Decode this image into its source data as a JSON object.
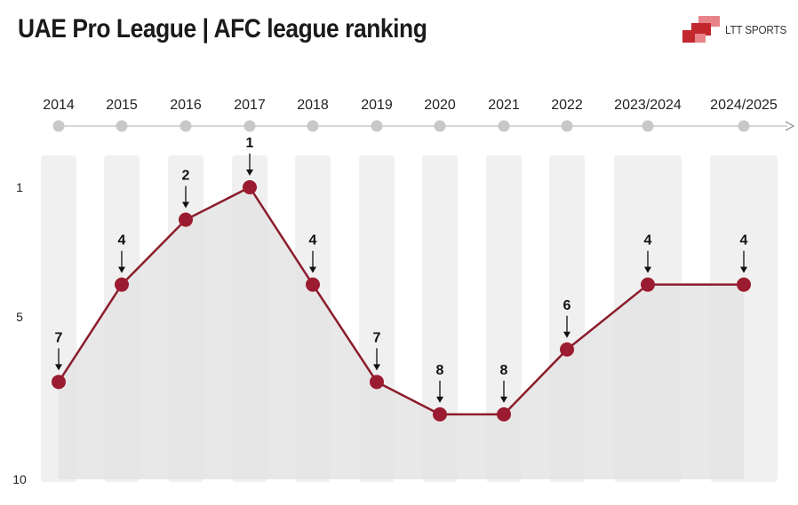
{
  "title": "UAE Pro League | AFC league ranking",
  "logo": {
    "text": "LTT SPORTS"
  },
  "colors": {
    "line": "#8b1c2c",
    "marker": "#9b1b30",
    "timeline": "#c8c8c8",
    "column": "#f0f0f0",
    "area": "#e4e4e4",
    "logo_primary": "#c1272d",
    "logo_light": "#e8838a"
  },
  "chart_data": {
    "type": "line",
    "x": [
      "2014",
      "2015",
      "2016",
      "2017",
      "2018",
      "2019",
      "2020",
      "2021",
      "2022",
      "2023/2024",
      "2024/2025"
    ],
    "series": [
      {
        "values": [
          7,
          4,
          2,
          1,
          4,
          7,
          8,
          8,
          6,
          4,
          4
        ]
      }
    ],
    "data_labels": [
      "7",
      "4",
      "2",
      "1",
      "4",
      "7",
      "8",
      "8",
      "6",
      "4",
      "4"
    ],
    "y_ticks": [
      "1",
      "5",
      "10"
    ],
    "ylim": [
      1,
      10
    ],
    "y_inverted": true,
    "grid": false,
    "legend": "none"
  }
}
